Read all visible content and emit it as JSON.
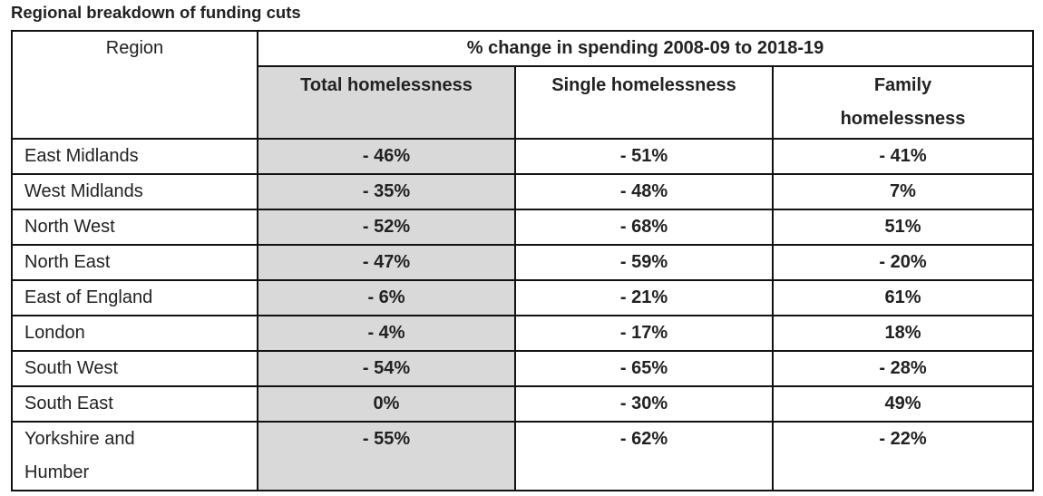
{
  "title": "Regional breakdown of funding cuts",
  "headers": {
    "region": "Region",
    "group": "% change in spending 2008-09 to 2018-19",
    "total": "Total homelessness",
    "single": "Single homelessness",
    "family": "Family homelessness"
  },
  "rows": [
    {
      "region": "East Midlands",
      "total": "- 46%",
      "single": "- 51%",
      "family": "- 41%"
    },
    {
      "region": "West Midlands",
      "total": "- 35%",
      "single": "- 48%",
      "family": "7%"
    },
    {
      "region": "North West",
      "total": "- 52%",
      "single": "- 68%",
      "family": "51%"
    },
    {
      "region": "North East",
      "total": "- 47%",
      "single": "- 59%",
      "family": "- 20%"
    },
    {
      "region": "East of England",
      "total": "- 6%",
      "single": "- 21%",
      "family": "61%"
    },
    {
      "region": "London",
      "total": "- 4%",
      "single": "- 17%",
      "family": "18%"
    },
    {
      "region": "South West",
      "total": "- 54%",
      "single": "- 65%",
      "family": "- 28%"
    },
    {
      "region": "South East",
      "total": "0%",
      "single": "- 30%",
      "family": "49%"
    },
    {
      "region": "Yorkshire and Humber",
      "total": "- 55%",
      "single": "- 62%",
      "family": "- 22%"
    }
  ]
}
